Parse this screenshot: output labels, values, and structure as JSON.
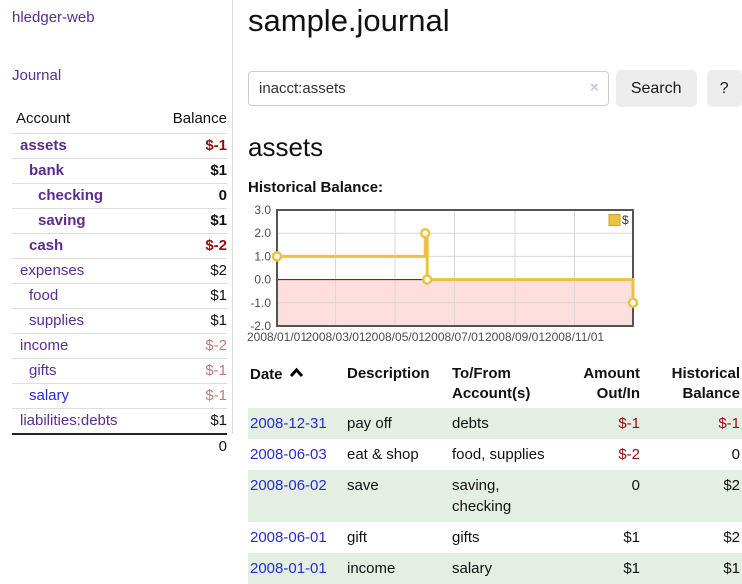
{
  "app": {
    "brand": "hledger-web"
  },
  "sidebar": {
    "journal_link": "Journal",
    "accounts_table": {
      "headers": {
        "account": "Account",
        "balance": "Balance"
      },
      "rows": [
        {
          "name": "assets",
          "depth": 1,
          "bold": true,
          "balance": "$-1"
        },
        {
          "name": "bank",
          "depth": 2,
          "bold": true,
          "balance": "$1"
        },
        {
          "name": "checking",
          "depth": 3,
          "bold": true,
          "balance": "0"
        },
        {
          "name": "saving",
          "depth": 3,
          "bold": true,
          "balance": "$1"
        },
        {
          "name": "cash",
          "depth": 2,
          "bold": true,
          "balance": "$-2"
        },
        {
          "name": "expenses",
          "depth": 1,
          "bold": false,
          "balance": "$2"
        },
        {
          "name": "food",
          "depth": 2,
          "bold": false,
          "balance": "$1"
        },
        {
          "name": "supplies",
          "depth": 2,
          "bold": false,
          "balance": "$1"
        },
        {
          "name": "income",
          "depth": 1,
          "bold": false,
          "balance": "$-2",
          "dim_negative": true
        },
        {
          "name": "gifts",
          "depth": 2,
          "bold": false,
          "balance": "$-1",
          "dim_negative": true
        },
        {
          "name": "salary",
          "depth": 2,
          "bold": false,
          "balance": "$-1",
          "dim_negative": true,
          "blue_link": true
        },
        {
          "name": "liabilities:debts",
          "depth": 1,
          "bold": false,
          "balance": "$1"
        }
      ],
      "total": "0"
    }
  },
  "header": {
    "title": "sample.journal"
  },
  "search": {
    "value": "inacct:assets",
    "clear_icon": "×",
    "button": "Search",
    "help_button": "?"
  },
  "account_view": {
    "heading": "assets",
    "chart_title": "Historical Balance:"
  },
  "chart_data": {
    "type": "line",
    "step": true,
    "title": "Historical Balance:",
    "ylim": [
      -2.0,
      3.0
    ],
    "yticks": [
      3.0,
      2.0,
      1.0,
      0.0,
      -1.0,
      -2.0
    ],
    "x_range_days": 365,
    "xticks": [
      {
        "day": 0,
        "label": "2008/01/01"
      },
      {
        "day": 60,
        "label": "2008/03/01"
      },
      {
        "day": 121,
        "label": "2008/05/01"
      },
      {
        "day": 182,
        "label": "2008/07/01"
      },
      {
        "day": 244,
        "label": "2008/09/01"
      },
      {
        "day": 305,
        "label": "2008/11/01"
      }
    ],
    "series": [
      {
        "name": "$",
        "color": "#edc240",
        "points": [
          {
            "date": "2008-01-01",
            "day": 0,
            "value": 1
          },
          {
            "date": "2008-06-01",
            "day": 152,
            "value": 2
          },
          {
            "date": "2008-06-03",
            "day": 154,
            "value": 0
          },
          {
            "date": "2008-12-31",
            "day": 365,
            "value": -1
          }
        ]
      }
    ],
    "grid": true,
    "legend_position": "top-right",
    "negative_region_fill": "#ffdede",
    "zero_line_color": "#8b0000",
    "frame_color": "#545454",
    "gridline_color": "#d8d8d8"
  },
  "register": {
    "columns": [
      {
        "label": "Date",
        "align": "left",
        "sorted": "ascending"
      },
      {
        "label": "Description",
        "align": "left"
      },
      {
        "label": "To/From Account(s)",
        "align": "left"
      },
      {
        "label": "Amount Out/In",
        "align": "right"
      },
      {
        "label": "Historical Balance",
        "align": "right"
      }
    ],
    "rows": [
      {
        "date": "2008-12-31",
        "description": "pay off",
        "accounts": "debts",
        "amount": "$-1",
        "balance": "$-1"
      },
      {
        "date": "2008-06-03",
        "description": "eat & shop",
        "accounts": "food, supplies",
        "amount": "$-2",
        "balance": "0"
      },
      {
        "date": "2008-06-02",
        "description": "save",
        "accounts": "saving, checking",
        "amount": "0",
        "balance": "$2"
      },
      {
        "date": "2008-06-01",
        "description": "gift",
        "accounts": "gifts",
        "amount": "$1",
        "balance": "$2"
      },
      {
        "date": "2008-01-01",
        "description": "income",
        "accounts": "salary",
        "amount": "$1",
        "balance": "$1"
      }
    ]
  },
  "colors": {
    "accent_purple": "#5b2c90",
    "link_blue": "#2a2ad2",
    "negative": "#970c0c",
    "negative_dim": "#c47a7a",
    "row_green": "#e2efe2",
    "chart_yellow": "#edc240",
    "chart_negative_fill": "#ffdede",
    "zero_line": "#8b0000"
  }
}
